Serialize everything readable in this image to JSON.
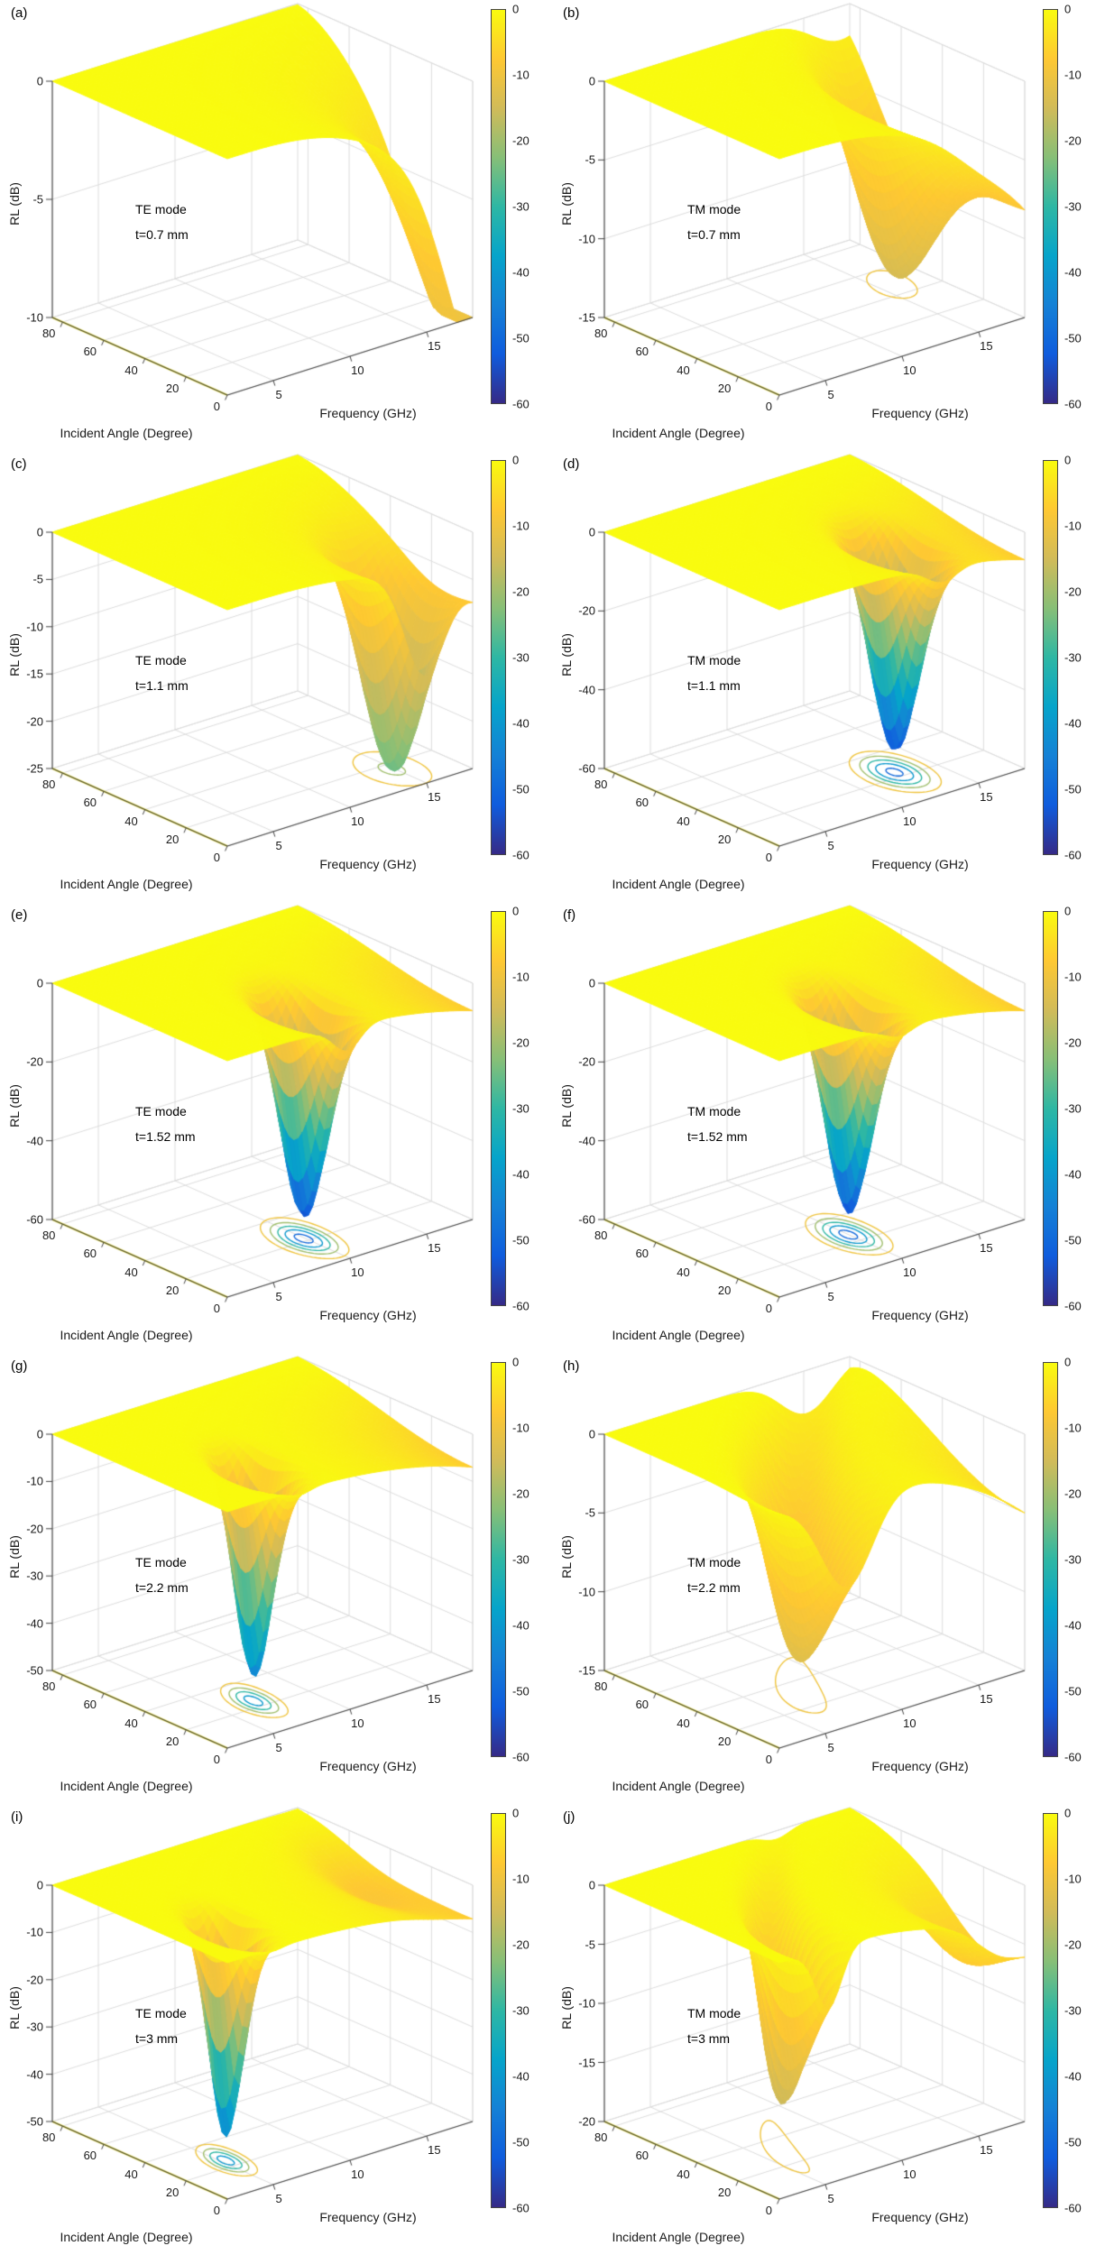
{
  "figure": {
    "xlabel": "Frequency (GHz)",
    "ylabel": "Incident Angle (Degree)",
    "zlabel": "RL (dB)",
    "x_ticks": [
      5,
      10,
      15
    ],
    "y_ticks": [
      0,
      20,
      40,
      60,
      80
    ],
    "colorbar_ticks": [
      0,
      -10,
      -20,
      -30,
      -40,
      -50,
      -60
    ],
    "x_range_GHz": [
      2,
      18
    ],
    "y_range_deg": [
      0,
      85
    ],
    "color_range_dB": [
      -60,
      0
    ],
    "colormap": "parula",
    "colormap_stops": [
      "#352a87",
      "#0f5cdd",
      "#1481d6",
      "#06a4ca",
      "#2eb7a4",
      "#87bf77",
      "#d1bb59",
      "#fec832",
      "#f9fb0e"
    ],
    "grid_color": "#dcdcdc",
    "axis_color": "#444444",
    "surface_edge_highlight": "#f2e93f"
  },
  "chart_data": [
    {
      "type": "3d-surface",
      "panel": "(a)",
      "mode": "TE mode",
      "thickness": "t=0.7 mm",
      "zticks": [
        0,
        -5,
        -10
      ],
      "zlim": [
        -10,
        0
      ],
      "dip": {
        "frequency_GHz": 18,
        "angle_deg": 0,
        "min_RL_dB": -10
      },
      "model": {
        "bg": 6.5,
        "f0": 18.5,
        "fCurve": 0,
        "th0": 5,
        "sf": 3.2,
        "sth": 26,
        "depth": 6
      }
    },
    {
      "type": "3d-surface",
      "panel": "(b)",
      "mode": "TM mode",
      "thickness": "t=0.7 mm",
      "zticks": [
        0,
        -5,
        -10,
        -15
      ],
      "zlim": [
        -15,
        0
      ],
      "dip": {
        "frequency_GHz": 15,
        "angle_deg": 50,
        "min_RL_dB": -13
      },
      "model": {
        "bg": 8,
        "f0": 15.0,
        "fCurve": 0.15,
        "th0": 48,
        "sf": 2.6,
        "sth": 28,
        "depth": 12
      }
    },
    {
      "type": "3d-surface",
      "panel": "(c)",
      "mode": "TE mode",
      "thickness": "t=1.1 mm",
      "zticks": [
        0,
        -5,
        -10,
        -15,
        -20,
        -25
      ],
      "zlim": [
        -25,
        0
      ],
      "dip": {
        "frequency_GHz": 14.8,
        "angle_deg": 16,
        "min_RL_dB": -25
      },
      "model": {
        "bg": 7,
        "f0": 14.8,
        "fCurve": 0.12,
        "th0": 16,
        "sf": 1.8,
        "sth": 18,
        "depth": 22
      }
    },
    {
      "type": "3d-surface",
      "panel": "(d)",
      "mode": "TM mode",
      "thickness": "t=1.1 mm",
      "zticks": [
        0,
        -20,
        -40,
        -60
      ],
      "zlim": [
        -60,
        0
      ],
      "dip": {
        "frequency_GHz": 12.6,
        "angle_deg": 24,
        "min_RL_dB": -57
      },
      "model": {
        "bg": 7,
        "f0": 12.6,
        "fCurve": 0.1,
        "th0": 24,
        "sf": 1.4,
        "sth": 15,
        "depth": 53
      }
    },
    {
      "type": "3d-surface",
      "panel": "(e)",
      "mode": "TE mode",
      "thickness": "t=1.52 mm",
      "zticks": [
        0,
        -20,
        -40,
        -60
      ],
      "zlim": [
        -60,
        0
      ],
      "dip": {
        "frequency_GHz": 9.8,
        "angle_deg": 22,
        "min_RL_dB": -58
      },
      "model": {
        "bg": 7,
        "f0": 9.8,
        "fCurve": 0.12,
        "th0": 22,
        "sf": 1.25,
        "sth": 15,
        "depth": 54
      }
    },
    {
      "type": "3d-surface",
      "panel": "(f)",
      "mode": "TM mode",
      "thickness": "t=1.52 mm",
      "zticks": [
        0,
        -20,
        -40,
        -60
      ],
      "zlim": [
        -60,
        0
      ],
      "dip": {
        "frequency_GHz": 9.8,
        "angle_deg": 26,
        "min_RL_dB": -58
      },
      "model": {
        "bg": 7,
        "f0": 9.8,
        "fCurve": 0.12,
        "th0": 26,
        "sf": 1.25,
        "sth": 15,
        "depth": 54
      }
    },
    {
      "type": "3d-surface",
      "panel": "(g)",
      "mode": "TE mode",
      "thickness": "t=2.2 mm",
      "zticks": [
        0,
        -10,
        -20,
        -30,
        -40,
        -50
      ],
      "zlim": [
        -50,
        0
      ],
      "dip": {
        "frequency_GHz": 6.8,
        "angle_deg": 25,
        "min_RL_dB": -49
      },
      "model": {
        "bg": 7,
        "f0": 6.8,
        "fCurve": 0.18,
        "th0": 25,
        "sf": 1.0,
        "sth": 13,
        "depth": 45
      }
    },
    {
      "type": "3d-surface",
      "panel": "(h)",
      "mode": "TM mode",
      "thickness": "t=2.2 mm",
      "zticks": [
        0,
        -5,
        -10,
        -15
      ],
      "zlim": [
        -15,
        0
      ],
      "dip": {
        "frequency_GHz": 6.4,
        "angle_deg": 35,
        "min_RL_dB": -14
      },
      "model": {
        "bg": 5,
        "f0": 6.4,
        "fCurve": 0.55,
        "th0": 35,
        "sf": 2.4,
        "sth": 40,
        "depth": 13
      }
    },
    {
      "type": "3d-surface",
      "panel": "(i)",
      "mode": "TE mode",
      "thickness": "t=3 mm",
      "zticks": [
        0,
        -10,
        -20,
        -30,
        -40,
        -50
      ],
      "zlim": [
        -50,
        0
      ],
      "dip": {
        "frequency_GHz": 5.0,
        "angle_deg": 25,
        "min_RL_dB": -49
      },
      "model": {
        "bg": 7,
        "f0": 5.0,
        "fCurve": 0.18,
        "th0": 25,
        "sf": 0.9,
        "sth": 12,
        "depth": 45,
        "sec": {
          "f0": 15.8,
          "fCurve": 0.1,
          "th0": 40,
          "sf": 2.0,
          "sth": 26,
          "depth": 5
        }
      }
    },
    {
      "type": "3d-surface",
      "panel": "(j)",
      "mode": "TM mode",
      "thickness": "t=3 mm",
      "zticks": [
        0,
        -5,
        -10,
        -15,
        -20
      ],
      "zlim": [
        -20,
        0
      ],
      "dip": {
        "frequency_GHz": 5.2,
        "angle_deg": 32,
        "min_RL_dB": -17
      },
      "model": {
        "bg": 5,
        "f0": 5.2,
        "fCurve": 0.5,
        "th0": 32,
        "sf": 1.2,
        "sth": 30,
        "depth": 16,
        "sec": {
          "f0": 16.5,
          "fCurve": 0,
          "th0": 20,
          "sf": 2.2,
          "sth": 22,
          "depth": 4
        }
      }
    }
  ]
}
